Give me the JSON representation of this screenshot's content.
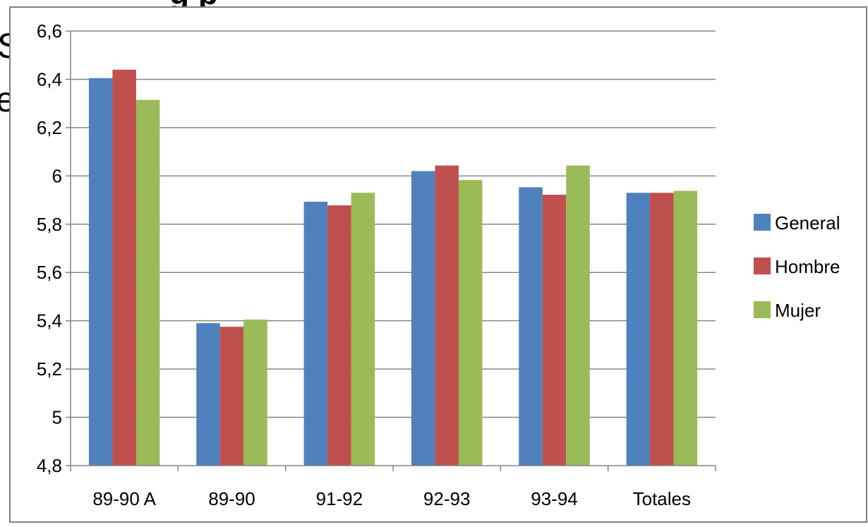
{
  "background": {
    "partial_title": "g        p",
    "partial_left_1": "S",
    "partial_left_2": "e"
  },
  "chart_data": {
    "type": "bar",
    "categories": [
      "89-90 A",
      "89-90",
      "91-92",
      "92-93",
      "93-94",
      "Totales"
    ],
    "series": [
      {
        "name": "General",
        "color": "#4F81BD",
        "values": [
          6.405,
          5.39,
          5.893,
          6.02,
          5.953,
          5.93
        ]
      },
      {
        "name": "Hombre",
        "color": "#C0504D",
        "values": [
          6.44,
          5.375,
          5.878,
          6.043,
          5.922,
          5.93
        ]
      },
      {
        "name": "Mujer",
        "color": "#9BBB59",
        "values": [
          6.315,
          5.405,
          5.93,
          5.983,
          6.043,
          5.938
        ]
      }
    ],
    "ylim": [
      4.8,
      6.6
    ],
    "yticks": [
      "4,8",
      "5",
      "5,2",
      "5,4",
      "5,6",
      "5,8",
      "6",
      "6,2",
      "6,4",
      "6,6"
    ],
    "ytick_values": [
      4.8,
      5.0,
      5.2,
      5.4,
      5.6,
      5.8,
      6.0,
      6.2,
      6.4,
      6.6
    ],
    "grid": true,
    "legend_position": "right",
    "title": "",
    "xlabel": "",
    "ylabel": ""
  }
}
